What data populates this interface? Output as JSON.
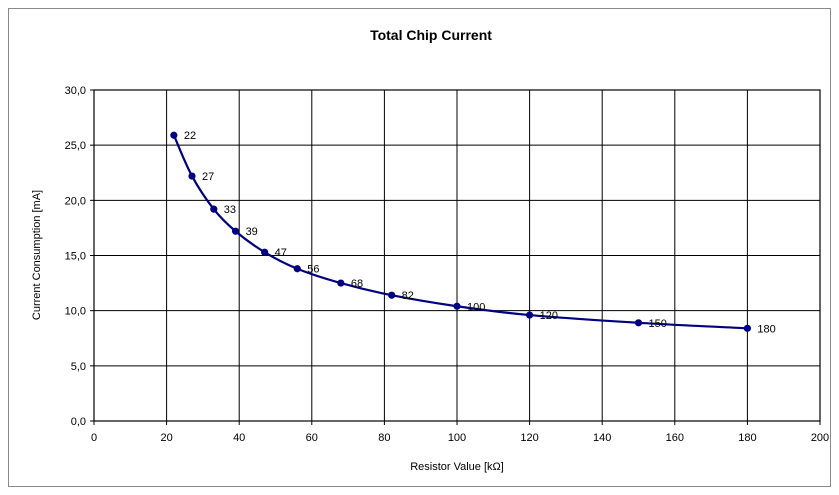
{
  "chart_data": {
    "type": "line",
    "title": "Total Chip Current",
    "xlabel": "Resistor Value [kΩ]",
    "ylabel": "Current Consumption [mA]",
    "xlim": [
      0,
      200
    ],
    "ylim": [
      0,
      30
    ],
    "x_ticks": [
      "0",
      "20",
      "40",
      "60",
      "80",
      "100",
      "120",
      "140",
      "160",
      "180",
      "200"
    ],
    "y_ticks": [
      "0,0",
      "5,0",
      "10,0",
      "15,0",
      "20,0",
      "25,0",
      "30,0"
    ],
    "grid": true,
    "legend": "none",
    "line_color": "#000080",
    "series": [
      {
        "x": [
          22,
          27,
          33,
          39,
          47,
          56,
          68,
          82,
          100,
          120,
          150,
          180
        ],
        "y": [
          25.9,
          22.2,
          19.2,
          17.2,
          15.3,
          13.8,
          12.5,
          11.4,
          10.4,
          9.6,
          8.9,
          8.4
        ],
        "point_labels": [
          "22",
          "27",
          "33",
          "39",
          "47",
          "56",
          "68",
          "82",
          "100",
          "120",
          "150",
          "180"
        ]
      }
    ]
  }
}
